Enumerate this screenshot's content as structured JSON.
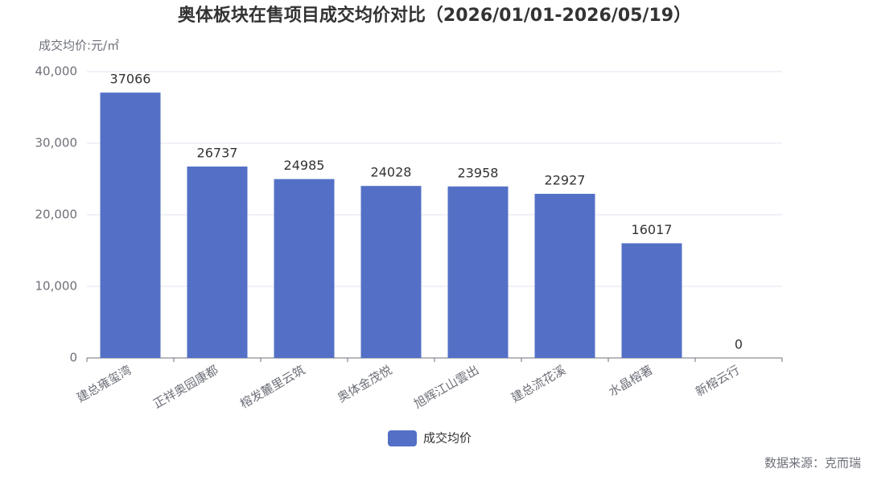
{
  "chart_data": {
    "type": "bar",
    "title": "奥体板块在售项目成交均价对比（2026/01/01-2026/05/19）",
    "y_axis_label": "成交均价:元/㎡",
    "categories": [
      "建总雍玺湾",
      "正祥奥园康都",
      "榕发麓里云筑",
      "奥体金茂悦",
      "旭辉江山雲出",
      "建总流花溪",
      "水晶榕著",
      "新榕云行"
    ],
    "series": [
      {
        "name": "成交均价",
        "color": "#5470c6",
        "values": [
          37066,
          26737,
          24985,
          24028,
          23958,
          22927,
          16017,
          0
        ]
      }
    ],
    "ylim": [
      0,
      40000
    ],
    "yticks": [
      0,
      {
        "value": 10000,
        "label": "10,000"
      },
      {
        "value": 20000,
        "label": "20,000"
      },
      {
        "value": 30000,
        "label": "30,000"
      },
      {
        "value": 40000,
        "label": "40,000"
      }
    ],
    "grid": true,
    "source": "数据来源：克而瑞"
  }
}
